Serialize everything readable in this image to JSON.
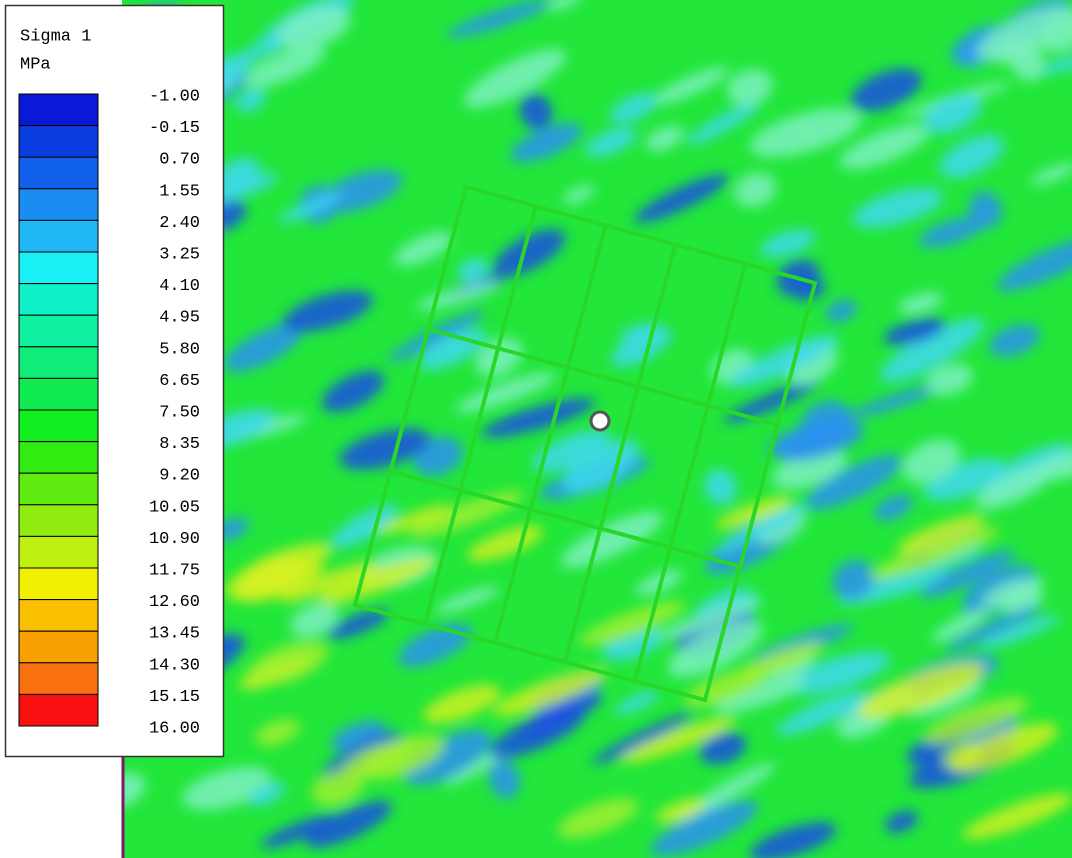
{
  "legend": {
    "title": "Sigma 1",
    "unit": "MPa",
    "labels": [
      "-1.00",
      "-0.15",
      "0.70",
      "1.55",
      "2.40",
      "3.25",
      "4.10",
      "4.95",
      "5.80",
      "6.65",
      "7.50",
      "8.35",
      "9.20",
      "10.05",
      "10.90",
      "11.75",
      "12.60",
      "13.45",
      "14.30",
      "15.15",
      "16.00"
    ],
    "band_colors": [
      "#0a18d8",
      "#0a3ee0",
      "#1060ec",
      "#1a8ef0",
      "#20b8f4",
      "#18f0f4",
      "#10f0c8",
      "#10f0a0",
      "#10ec78",
      "#10ec50",
      "#10f020",
      "#30ec10",
      "#60ec10",
      "#90ec10",
      "#c0f010",
      "#f0f000",
      "#f8c000",
      "#f8a000",
      "#f87010",
      "#f81010"
    ]
  }
}
